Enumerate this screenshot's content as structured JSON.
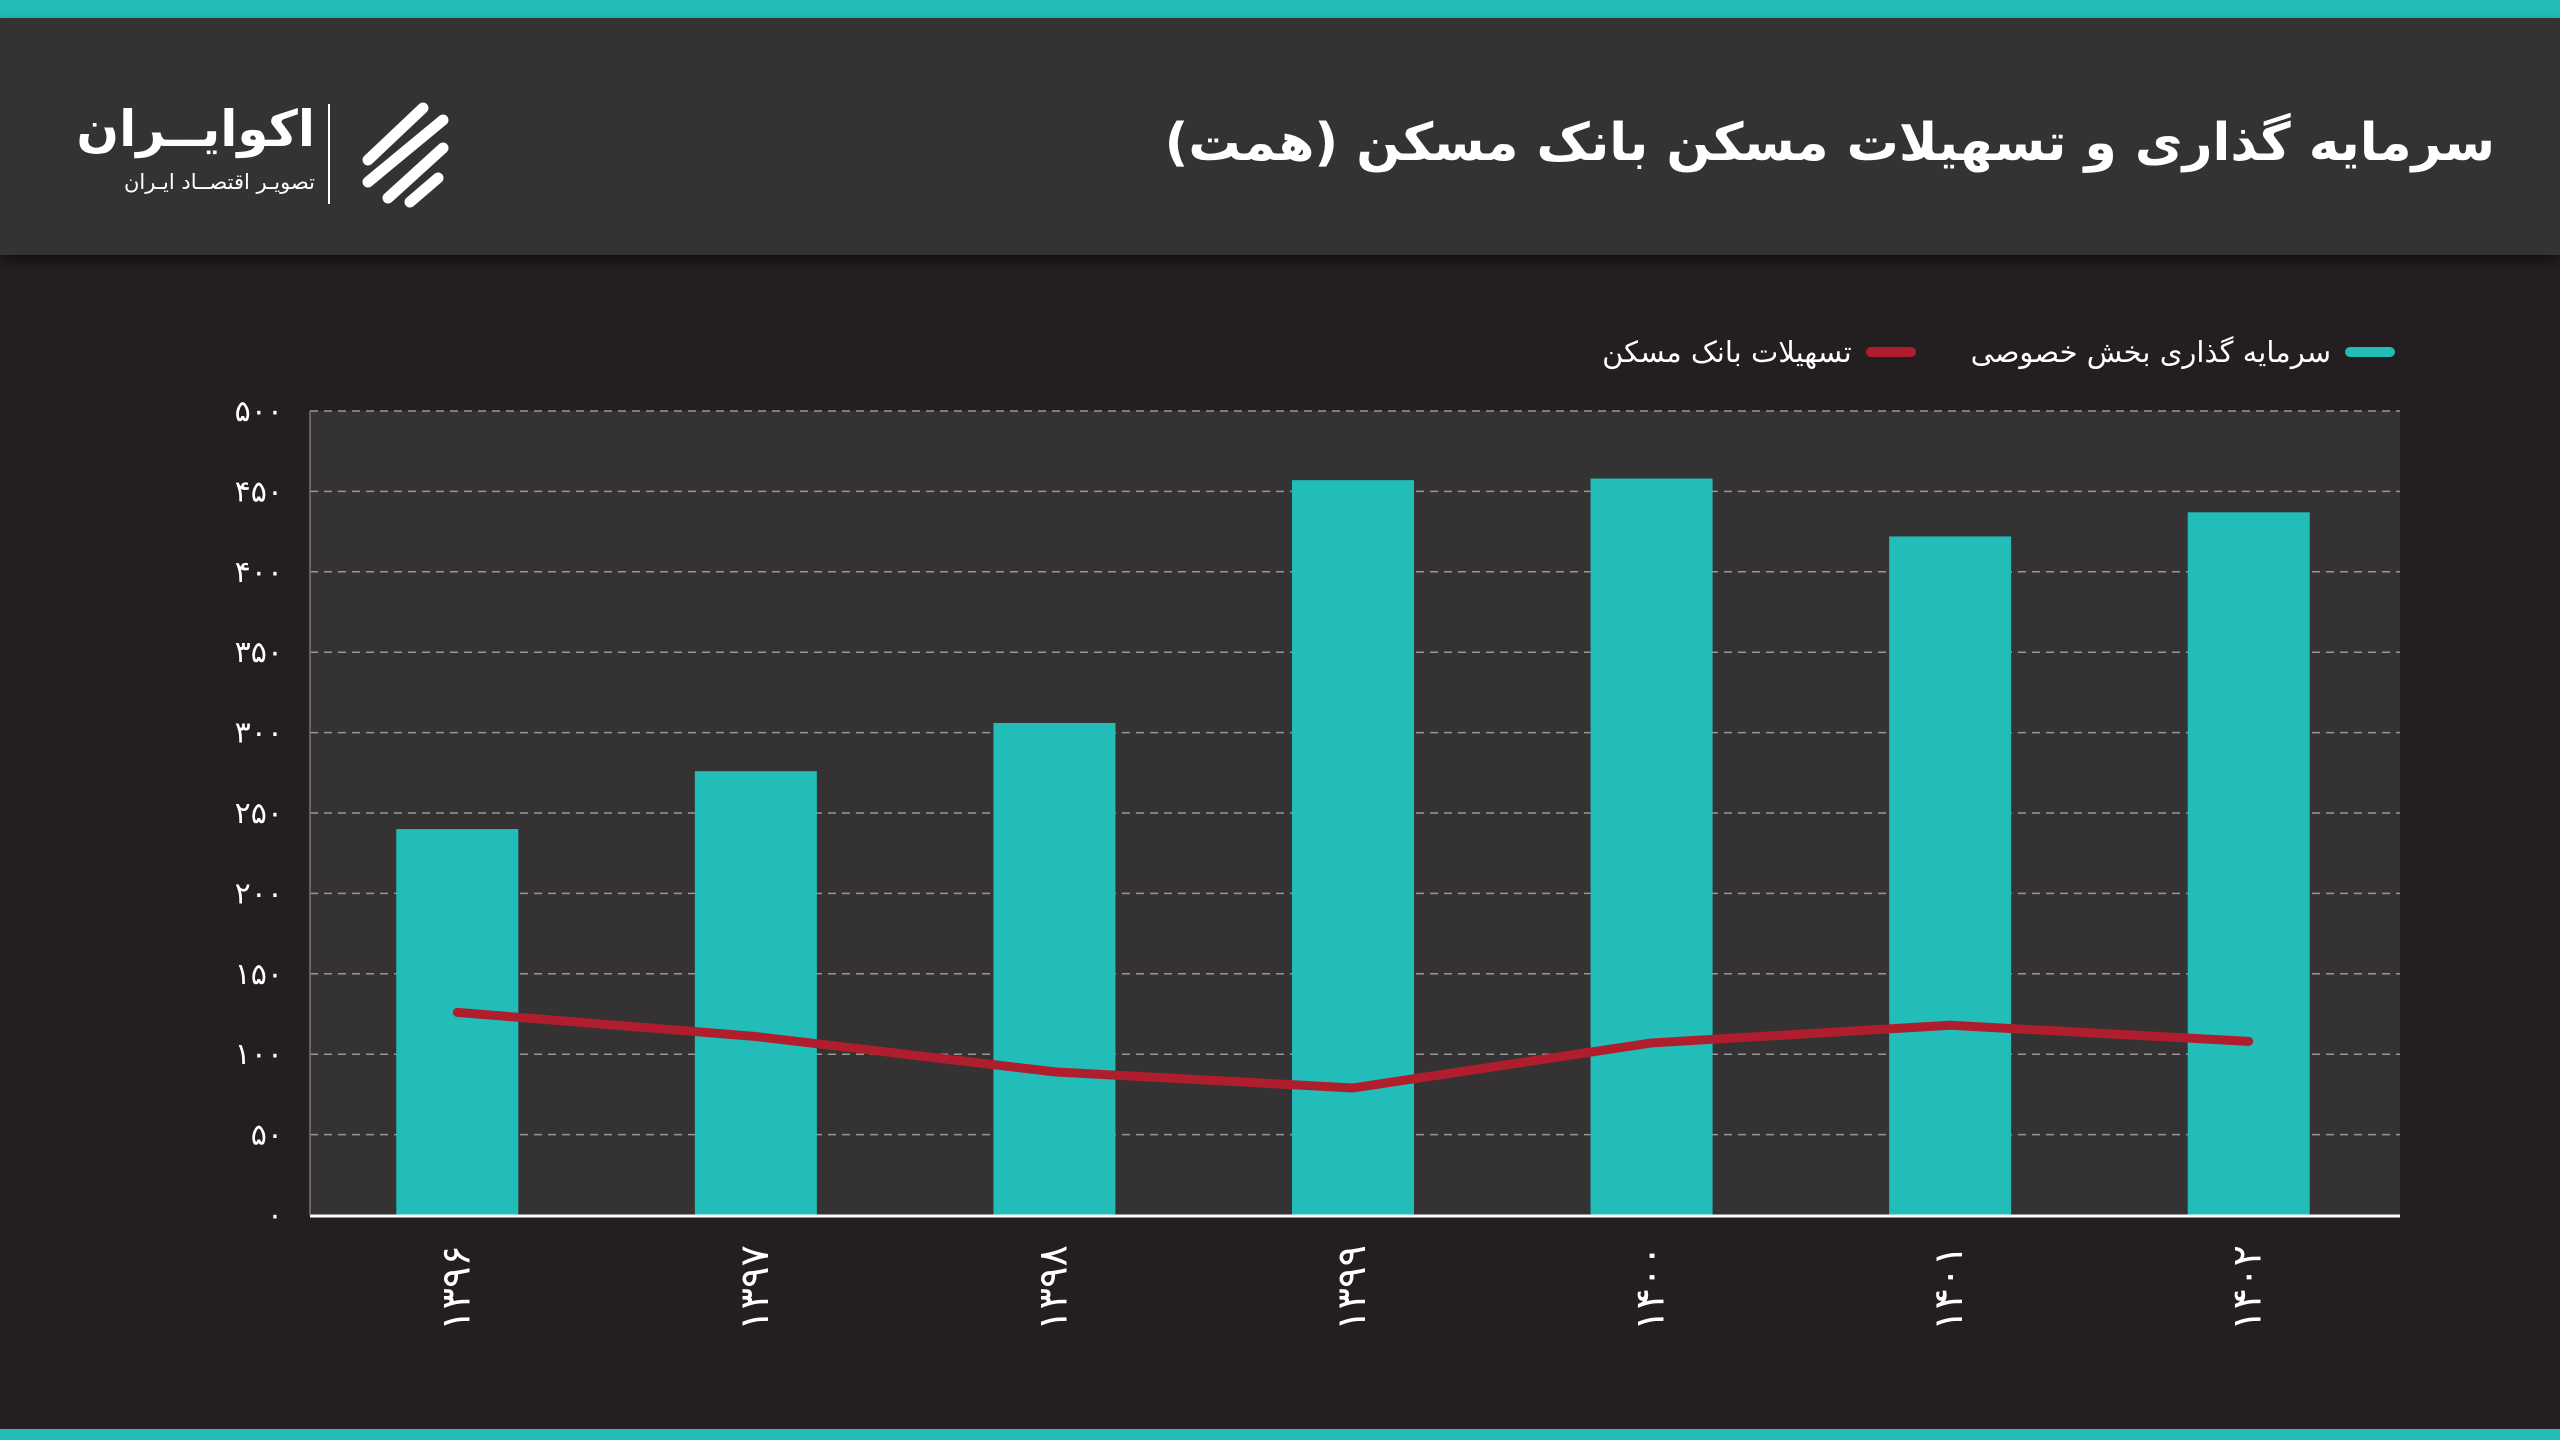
{
  "header": {
    "title": "سرمایه گذاری و تسهیلات مسکن بانک مسکن (همت)",
    "logo_name": "اکوایــران",
    "logo_tagline": "تصویـر اقتصــاد ایـران"
  },
  "colors": {
    "accent": "#22bdb8",
    "line": "#b01e2d",
    "background": "#231f20",
    "plot_background": "#353233"
  },
  "chart_data": {
    "type": "bar",
    "title": "سرمایه گذاری و تسهیلات مسکن بانک مسکن (همت)",
    "categories": [
      "۱۳۹۶",
      "۱۳۹۷",
      "۱۳۹۸",
      "۱۳۹۹",
      "۱۴۰۰",
      "۱۴۰۱",
      "۱۴۰۲"
    ],
    "series": [
      {
        "name": "سرمایه گذاری بخش خصوصی",
        "type": "bar",
        "color": "#22bdb8",
        "values": [
          240,
          276,
          306,
          457,
          458,
          422,
          437
        ]
      },
      {
        "name": "تسهیلات بانک مسکن",
        "type": "line",
        "color": "#b01e2d",
        "values": [
          126,
          111,
          89,
          79,
          107,
          118,
          108
        ]
      }
    ],
    "ylim": [
      0,
      500
    ],
    "yticks": [
      0,
      50,
      100,
      150,
      200,
      250,
      300,
      350,
      400,
      450,
      500
    ],
    "ytick_labels": [
      "۰",
      "۵۰",
      "۱۰۰",
      "۱۵۰",
      "۲۰۰",
      "۲۵۰",
      "۳۰۰",
      "۳۵۰",
      "۴۰۰",
      "۴۵۰",
      "۵۰۰"
    ],
    "grid": true,
    "legend": "top-right"
  }
}
